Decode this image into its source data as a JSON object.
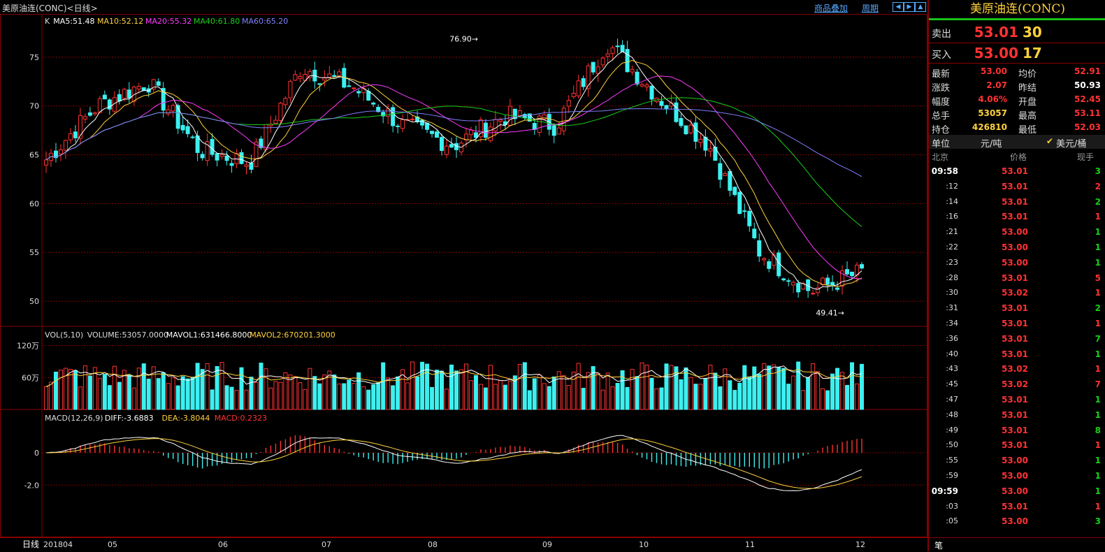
{
  "header": {
    "title": "美原油连(CONC)<日线>",
    "overlay_link": "商品叠加",
    "period_link": "周期",
    "nav_icons": [
      "arrow-left-icon",
      "arrow-right-icon",
      "arrow-up-icon"
    ]
  },
  "chart_data": {
    "type": "candlestick",
    "symbol": "美原油连(CONC)",
    "period": "日线",
    "ylim": [
      48,
      78
    ],
    "yticks": [
      50,
      55,
      60,
      65,
      70,
      75
    ],
    "ma_legend": [
      {
        "name": "K",
        "value": "",
        "color": "#dddddd"
      },
      {
        "name": "MA5",
        "value": "51.48",
        "color": "#ffffff"
      },
      {
        "name": "MA10",
        "value": "52.12",
        "color": "#ffd23c"
      },
      {
        "name": "MA20",
        "value": "55.32",
        "color": "#ff3cff"
      },
      {
        "name": "MA40",
        "value": "61.80",
        "color": "#17d017"
      },
      {
        "name": "MA60",
        "value": "65.20",
        "color": "#8080ff"
      }
    ],
    "annotations": [
      {
        "text": "76.90",
        "kind": "high",
        "month": "10"
      },
      {
        "text": "49.41",
        "kind": "low",
        "month": "12"
      }
    ],
    "x_labels": [
      "201804",
      "05",
      "06",
      "07",
      "08",
      "09",
      "10",
      "11",
      "12"
    ],
    "ohlc_anchors": [
      {
        "x": "201804",
        "close": 64.5
      },
      {
        "x": "05",
        "close": 70.0
      },
      {
        "x": "05b",
        "close": 72.5
      },
      {
        "x": "06",
        "close": 65.5
      },
      {
        "x": "06b",
        "close": 64.2
      },
      {
        "x": "07",
        "close": 74.0
      },
      {
        "x": "07b",
        "close": 72.0
      },
      {
        "x": "08",
        "close": 68.0
      },
      {
        "x": "08b",
        "close": 66.0
      },
      {
        "x": "09",
        "close": 69.0
      },
      {
        "x": "09b",
        "close": 68.0
      },
      {
        "x": "10",
        "close": 76.5
      },
      {
        "x": "10b",
        "close": 71.0
      },
      {
        "x": "11",
        "close": 66.0
      },
      {
        "x": "11b",
        "close": 55.0
      },
      {
        "x": "12",
        "close": 51.0
      },
      {
        "x": "12b",
        "close": 53.0
      }
    ],
    "volume": {
      "legend": "VOL(5,10)",
      "items": [
        {
          "name": "VOLUME",
          "value": "53057.0000",
          "color": "#dddddd"
        },
        {
          "name": "MAVOL1",
          "value": "631466.8000",
          "color": "#ffffff"
        },
        {
          "name": "MAVOL2",
          "value": "670201.3000",
          "color": "#ffd23c"
        }
      ],
      "ylabels": [
        "120万",
        "60万"
      ]
    },
    "macd": {
      "legend": "MACD(12,26,9)",
      "items": [
        {
          "name": "DIFF",
          "value": "-3.6883",
          "color": "#ffffff"
        },
        {
          "name": "DEA",
          "value": "-3.8044",
          "color": "#ffd23c"
        },
        {
          "name": "MACD",
          "value": "0.2323",
          "color": "#ff3232"
        }
      ],
      "ylabels": [
        "0",
        "-2.0"
      ]
    }
  },
  "quote": {
    "title": "美原油连(CONC)",
    "ask_label": "卖出",
    "ask_price": "53.01",
    "ask_vol": "30",
    "bid_label": "买入",
    "bid_price": "53.00",
    "bid_vol": "17",
    "stats": [
      {
        "l1": "最新",
        "v1": "53.00",
        "c1": "red",
        "l2": "均价",
        "v2": "52.91",
        "c2": "red"
      },
      {
        "l1": "涨跌",
        "v1": "2.07",
        "c1": "red",
        "l2": "昨结",
        "v2": "50.93",
        "c2": "wht"
      },
      {
        "l1": "幅度",
        "v1": "4.06%",
        "c1": "red",
        "l2": "开盘",
        "v2": "52.45",
        "c2": "red"
      },
      {
        "l1": "总手",
        "v1": "53057",
        "c1": "yel",
        "l2": "最高",
        "v2": "53.11",
        "c2": "red"
      },
      {
        "l1": "持仓",
        "v1": "426810",
        "c1": "yel",
        "l2": "最低",
        "v2": "52.03",
        "c2": "red"
      }
    ],
    "unit_label": "单位",
    "unit_a": "元/吨",
    "unit_b": "美元/桶",
    "tick_headers": [
      "北京",
      "价格",
      "现手"
    ],
    "ticks": [
      {
        "t": "09:58",
        "p": "53.01",
        "pc": "red",
        "v": "3",
        "vc": "grn",
        "full": true
      },
      {
        "t": ":12",
        "p": "53.01",
        "pc": "red",
        "v": "2",
        "vc": "red"
      },
      {
        "t": ":14",
        "p": "53.01",
        "pc": "red",
        "v": "2",
        "vc": "grn"
      },
      {
        "t": ":16",
        "p": "53.01",
        "pc": "red",
        "v": "1",
        "vc": "red"
      },
      {
        "t": ":21",
        "p": "53.00",
        "pc": "red",
        "v": "1",
        "vc": "grn"
      },
      {
        "t": ":22",
        "p": "53.00",
        "pc": "red",
        "v": "1",
        "vc": "grn"
      },
      {
        "t": ":23",
        "p": "53.00",
        "pc": "red",
        "v": "1",
        "vc": "grn"
      },
      {
        "t": ":28",
        "p": "53.01",
        "pc": "red",
        "v": "5",
        "vc": "red"
      },
      {
        "t": ":30",
        "p": "53.02",
        "pc": "red",
        "v": "1",
        "vc": "red"
      },
      {
        "t": ":31",
        "p": "53.01",
        "pc": "red",
        "v": "2",
        "vc": "grn"
      },
      {
        "t": ":34",
        "p": "53.01",
        "pc": "red",
        "v": "1",
        "vc": "red"
      },
      {
        "t": ":36",
        "p": "53.01",
        "pc": "red",
        "v": "7",
        "vc": "grn"
      },
      {
        "t": ":40",
        "p": "53.01",
        "pc": "red",
        "v": "1",
        "vc": "grn"
      },
      {
        "t": ":43",
        "p": "53.02",
        "pc": "red",
        "v": "1",
        "vc": "red"
      },
      {
        "t": ":45",
        "p": "53.02",
        "pc": "red",
        "v": "7",
        "vc": "red"
      },
      {
        "t": ":47",
        "p": "53.01",
        "pc": "red",
        "v": "1",
        "vc": "grn"
      },
      {
        "t": ":48",
        "p": "53.01",
        "pc": "red",
        "v": "1",
        "vc": "grn"
      },
      {
        "t": ":49",
        "p": "53.01",
        "pc": "red",
        "v": "8",
        "vc": "grn"
      },
      {
        "t": ":50",
        "p": "53.01",
        "pc": "red",
        "v": "1",
        "vc": "red"
      },
      {
        "t": ":55",
        "p": "53.00",
        "pc": "red",
        "v": "1",
        "vc": "grn"
      },
      {
        "t": ":59",
        "p": "53.00",
        "pc": "red",
        "v": "1",
        "vc": "grn"
      },
      {
        "t": "09:59",
        "p": "53.00",
        "pc": "red",
        "v": "1",
        "vc": "grn",
        "full": true
      },
      {
        "t": ":03",
        "p": "53.01",
        "pc": "red",
        "v": "1",
        "vc": "red"
      },
      {
        "t": ":05",
        "p": "53.00",
        "pc": "red",
        "v": "3",
        "vc": "grn"
      }
    ],
    "bottom_tab": "笔"
  },
  "footer": {
    "tab": "日线"
  }
}
